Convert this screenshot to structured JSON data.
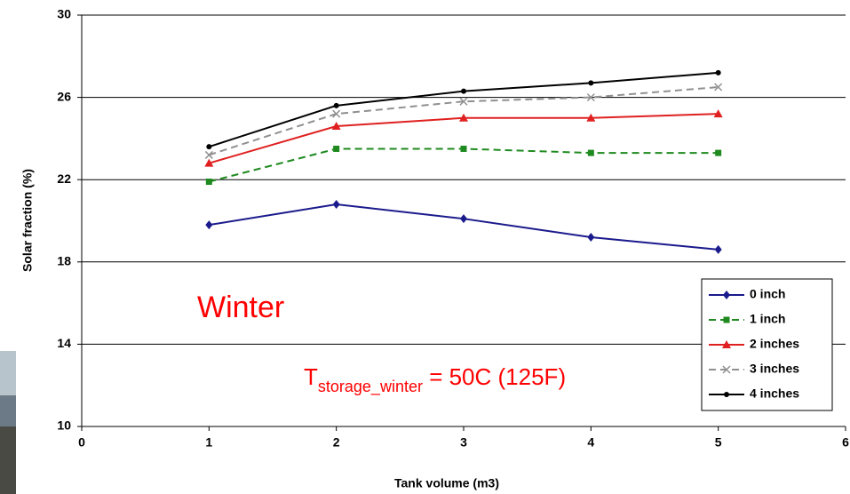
{
  "chart_data": {
    "type": "line",
    "xlabel": "Tank volume (m3)",
    "ylabel": "Solar fraction (%)",
    "x": [
      1,
      2,
      3,
      4,
      5
    ],
    "xlim": [
      0,
      6
    ],
    "xticks": [
      0,
      1,
      2,
      3,
      4,
      5,
      6
    ],
    "ylim": [
      10,
      30
    ],
    "yticks": [
      10,
      14,
      18,
      22,
      26,
      30
    ],
    "grid": true,
    "legend": "lower right",
    "series": [
      {
        "name": "0 inch",
        "color": "#1a1a8c",
        "marker": "diamond",
        "dash": false,
        "values": [
          19.8,
          20.8,
          20.1,
          19.2,
          18.6
        ]
      },
      {
        "name": "1 inch",
        "color": "#1f8a1f",
        "marker": "square",
        "dash": true,
        "values": [
          21.9,
          23.5,
          23.5,
          23.3,
          23.3
        ]
      },
      {
        "name": "2 inches",
        "color": "#e02020",
        "marker": "triangle",
        "dash": false,
        "values": [
          22.8,
          24.6,
          25.0,
          25.0,
          25.2
        ]
      },
      {
        "name": "3 inches",
        "color": "#909090",
        "marker": "x",
        "dash": true,
        "values": [
          23.2,
          25.2,
          25.8,
          26.0,
          26.5
        ]
      },
      {
        "name": "4 inches",
        "color": "#000000",
        "marker": "dot",
        "dash": false,
        "values": [
          23.6,
          25.6,
          26.3,
          26.7,
          27.2
        ]
      }
    ],
    "annotations": [
      "Winter",
      {
        "main": "T",
        "subscript": "storage_winter",
        "rest": " = 50C (125F)"
      }
    ]
  }
}
